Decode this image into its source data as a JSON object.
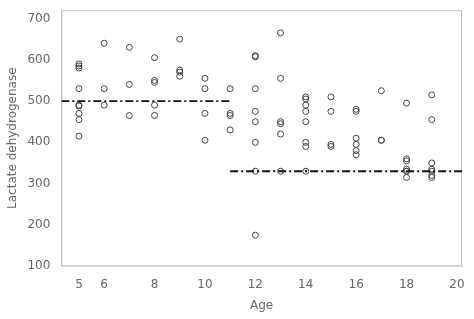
{
  "chart_data": {
    "type": "scatter",
    "xlabel": "Age",
    "ylabel": "Lactate dehydrogenase",
    "xlim": [
      4.3,
      20.2
    ],
    "ylim": [
      100,
      720
    ],
    "xticks": [
      5,
      6,
      8,
      10,
      12,
      14,
      16,
      18,
      20
    ],
    "yticks": [
      100,
      200,
      300,
      400,
      500,
      600,
      700
    ],
    "grid": false,
    "series": [
      {
        "type": "scatter",
        "color": "#444444",
        "marker": "circle",
        "x": [
          5,
          5,
          5,
          5,
          5,
          5,
          5,
          5,
          5,
          6,
          6,
          6,
          7,
          7,
          7,
          8,
          8,
          8,
          8,
          8,
          9,
          9,
          9,
          9,
          10,
          10,
          10,
          10,
          11,
          11,
          11,
          11,
          12,
          12,
          12,
          12,
          12,
          12,
          12,
          12,
          13,
          13,
          13,
          13,
          13,
          13,
          14,
          14,
          14,
          14,
          14,
          14,
          14,
          14,
          15,
          15,
          15,
          15,
          16,
          16,
          16,
          16,
          16,
          16,
          17,
          17,
          17,
          18,
          18,
          18,
          18,
          18,
          18,
          18,
          19,
          19,
          19,
          19,
          19,
          19,
          19
        ],
        "values": [
          590,
          585,
          580,
          530,
          490,
          488,
          470,
          455,
          415,
          640,
          530,
          490,
          630,
          540,
          465,
          605,
          550,
          545,
          490,
          465,
          650,
          575,
          570,
          560,
          555,
          530,
          470,
          405,
          530,
          470,
          465,
          430,
          610,
          607,
          530,
          475,
          450,
          400,
          330,
          175,
          665,
          555,
          450,
          445,
          420,
          330,
          510,
          505,
          490,
          475,
          450,
          400,
          390,
          330,
          510,
          475,
          395,
          390,
          480,
          475,
          410,
          395,
          380,
          370,
          525,
          405,
          405,
          495,
          360,
          355,
          335,
          330,
          330,
          315,
          515,
          455,
          350,
          335,
          330,
          320,
          315
        ]
      },
      {
        "type": "line",
        "color": "#111111",
        "line_style": "dashdot",
        "x": [
          4.3,
          11.0
        ],
        "values": [
          500,
          500
        ]
      },
      {
        "type": "line",
        "color": "#111111",
        "line_style": "dashdot",
        "x": [
          11.0,
          20.2
        ],
        "values": [
          330,
          330
        ]
      }
    ]
  }
}
